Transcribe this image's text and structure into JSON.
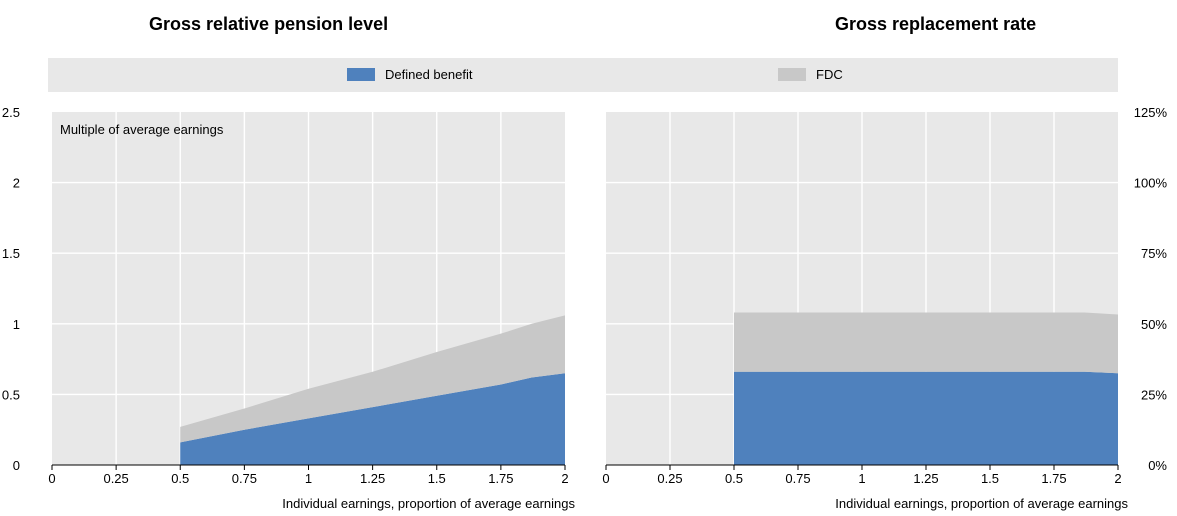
{
  "legend": {
    "db_label": "Defined benefit",
    "fdc_label": "FDC",
    "db_color": "#4f81bd",
    "fdc_color": "#c8c8c8"
  },
  "chart_data": [
    {
      "type": "area",
      "stacked": true,
      "title": "Gross relative pension level",
      "annotation": "Multiple of average earnings",
      "xlabel": "Individual earnings, proportion of average earnings",
      "x_ticks": [
        "0",
        "0.25",
        "0.5",
        "0.75",
        "1",
        "1.25",
        "1.5",
        "1.75",
        "2"
      ],
      "y_ticks": [
        "0",
        "0.5",
        "1",
        "1.5",
        "2",
        "2.5"
      ],
      "y_axis_side": "left",
      "xlim": [
        0,
        2
      ],
      "ylim": [
        0,
        2.5
      ],
      "grid": true,
      "x": [
        0.5,
        0.75,
        1,
        1.25,
        1.5,
        1.75,
        1.87,
        2
      ],
      "series": [
        {
          "name": "Defined benefit",
          "values": [
            0.16,
            0.25,
            0.33,
            0.41,
            0.49,
            0.57,
            0.62,
            0.65
          ]
        },
        {
          "name": "FDC",
          "values": [
            0.11,
            0.15,
            0.21,
            0.25,
            0.31,
            0.36,
            0.38,
            0.41
          ]
        }
      ]
    },
    {
      "type": "area",
      "stacked": true,
      "title": "Gross replacement rate",
      "annotation": "",
      "xlabel": "Individual earnings, proportion of average earnings",
      "x_ticks": [
        "0",
        "0.25",
        "0.5",
        "0.75",
        "1",
        "1.25",
        "1.5",
        "1.75",
        "2"
      ],
      "y_ticks": [
        "0%",
        "25%",
        "50%",
        "75%",
        "100%",
        "125%"
      ],
      "y_axis_side": "right",
      "xlim": [
        0,
        2
      ],
      "ylim": [
        0,
        125
      ],
      "grid": true,
      "x": [
        0.5,
        0.75,
        1,
        1.25,
        1.5,
        1.75,
        1.87,
        2
      ],
      "series": [
        {
          "name": "Defined benefit",
          "values": [
            33,
            33,
            33,
            33,
            33,
            33,
            33,
            32.5
          ]
        },
        {
          "name": "FDC",
          "values": [
            21,
            21,
            21,
            21,
            21,
            21,
            21,
            20.8
          ]
        }
      ]
    }
  ]
}
